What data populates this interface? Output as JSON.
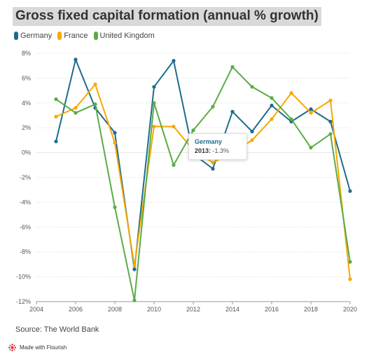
{
  "header": {
    "title": "Gross fixed capital formation (annual % growth)"
  },
  "legend": [
    {
      "name": "Germany",
      "color": "#1d6c8d"
    },
    {
      "name": "France",
      "color": "#f6a800"
    },
    {
      "name": "United Kingdom",
      "color": "#5aac44"
    }
  ],
  "tooltip": {
    "series": "Germany",
    "year": "2013:",
    "value": "-1.3%"
  },
  "footer": {
    "source": "Source: The World Bank",
    "made_with": "Made with Flourish"
  },
  "chart_data": {
    "type": "line",
    "x": [
      2005,
      2006,
      2007,
      2008,
      2009,
      2010,
      2011,
      2012,
      2013,
      2014,
      2015,
      2016,
      2017,
      2018,
      2019,
      2020
    ],
    "xlim": [
      2004,
      2020
    ],
    "ylim": [
      -12,
      8
    ],
    "x_ticks": [
      "2004",
      "2006",
      "2008",
      "2010",
      "2012",
      "2014",
      "2016",
      "2018",
      "2020"
    ],
    "y_ticks": [
      "8%",
      "6%",
      "4%",
      "2%",
      "0%",
      "-2%",
      "-4%",
      "-6%",
      "-8%",
      "-10%",
      "-12%"
    ],
    "grid": true,
    "legend_position": "top-left",
    "series": [
      {
        "name": "Germany",
        "color": "#1d6c8d",
        "values": [
          0.9,
          7.5,
          3.6,
          1.6,
          -9.4,
          5.3,
          7.4,
          -0.1,
          -1.3,
          3.3,
          1.7,
          3.8,
          2.5,
          3.5,
          2.5,
          -3.1
        ]
      },
      {
        "name": "France",
        "color": "#f6a800",
        "values": [
          2.9,
          3.6,
          5.5,
          0.8,
          -9.1,
          2.1,
          2.1,
          0.2,
          -0.8,
          0.0,
          1.0,
          2.7,
          4.8,
          3.2,
          4.2,
          -10.2
        ]
      },
      {
        "name": "United Kingdom",
        "color": "#5aac44",
        "values": [
          4.3,
          3.2,
          3.9,
          -4.4,
          -11.9,
          4.0,
          -1.0,
          1.8,
          3.7,
          6.9,
          5.3,
          4.4,
          2.7,
          0.4,
          1.5,
          -8.8
        ]
      }
    ]
  }
}
